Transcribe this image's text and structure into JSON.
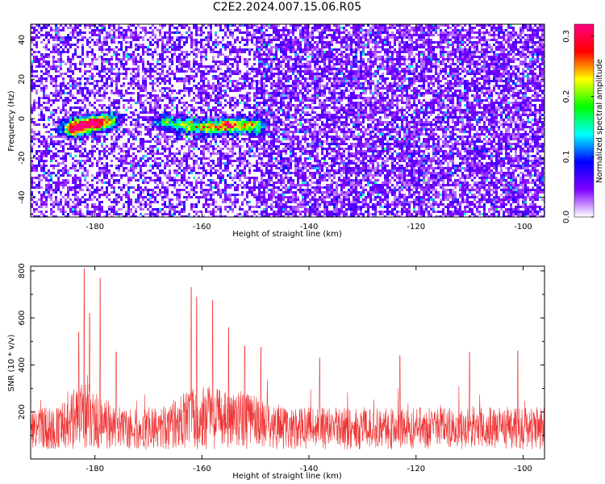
{
  "title": "C2E2.2024.007.15.06.R05",
  "chart_data": [
    {
      "type": "heatmap",
      "xlabel": "Height of straight line (km)",
      "ylabel": "Frequency (Hz)",
      "xlim": [
        -192,
        -96
      ],
      "ylim": [
        -50,
        48
      ],
      "x_ticks": [
        -180,
        -160,
        -140,
        -120,
        -100
      ],
      "y_ticks": [
        -40,
        -20,
        0,
        20,
        40
      ],
      "colorbar": {
        "label": "Normalized spectral amplitude",
        "range": [
          0,
          0.32
        ],
        "ticks": [
          0.0,
          0.1,
          0.2,
          0.3
        ],
        "palette": [
          "#ffffff",
          "#8000ff",
          "#0000ff",
          "#00ffff",
          "#00ff00",
          "#ffff00",
          "#ff0000",
          "#ff0080"
        ]
      },
      "hotspots": [
        {
          "height": -180,
          "frequency": -2,
          "amplitude": 0.32
        },
        {
          "height": -184,
          "frequency": -5,
          "amplitude": 0.26
        },
        {
          "height": -183,
          "frequency": -2,
          "amplitude": 0.2
        },
        {
          "height": -178,
          "frequency": 0,
          "amplitude": 0.15
        },
        {
          "height": -163,
          "frequency": -3,
          "amplitude": 0.2
        },
        {
          "height": -159,
          "frequency": -4,
          "amplitude": 0.22
        },
        {
          "height": -155,
          "frequency": -3,
          "amplitude": 0.3
        },
        {
          "height": -151,
          "frequency": -3,
          "amplitude": 0.24
        },
        {
          "height": -167,
          "frequency": -1,
          "amplitude": 0.14
        }
      ]
    },
    {
      "type": "line",
      "xlabel": "Height of straight line (km)",
      "ylabel": "SNR (10 * v/v)",
      "xlim": [
        -192,
        -96
      ],
      "ylim": [
        0,
        820
      ],
      "x_ticks": [
        -180,
        -160,
        -140,
        -120,
        -100
      ],
      "y_ticks": [
        200,
        400,
        600,
        800
      ],
      "color": "#ee3333",
      "series": [
        {
          "peaks": [
            {
              "height": -183,
              "snr": 540
            },
            {
              "height": -182,
              "snr": 810
            },
            {
              "height": -181,
              "snr": 620
            },
            {
              "height": -179,
              "snr": 770
            },
            {
              "height": -176,
              "snr": 455
            },
            {
              "height": -162,
              "snr": 730
            },
            {
              "height": -161,
              "snr": 690
            },
            {
              "height": -158,
              "snr": 675
            },
            {
              "height": -155,
              "snr": 560
            },
            {
              "height": -152,
              "snr": 480
            },
            {
              "height": -149,
              "snr": 475
            },
            {
              "height": -138,
              "snr": 430
            },
            {
              "height": -123,
              "snr": 440
            },
            {
              "height": -110,
              "snr": 455
            },
            {
              "height": -101,
              "snr": 460
            }
          ]
        }
      ]
    }
  ]
}
